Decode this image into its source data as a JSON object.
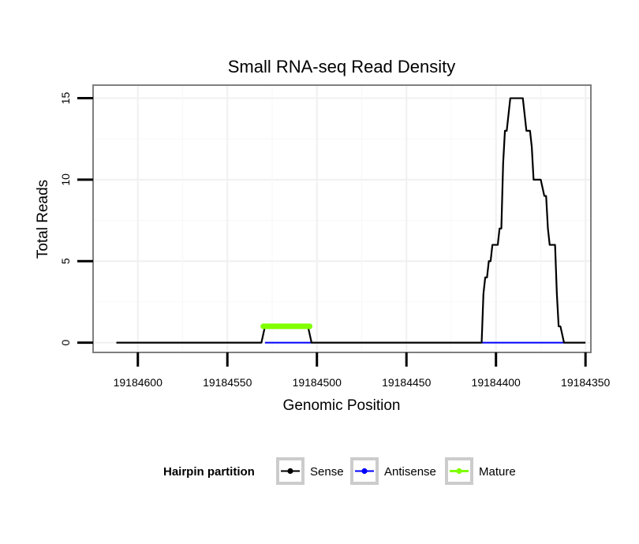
{
  "chart_data": {
    "type": "line",
    "title": "Small RNA-seq Read Density",
    "xlabel": "Genomic Position",
    "ylabel": "Total Reads",
    "xlim": [
      19184625,
      19184347
    ],
    "x_reversed": true,
    "ylim": [
      -0.6,
      15.8
    ],
    "x_ticks": [
      19184600,
      19184550,
      19184500,
      19184450,
      19184400,
      19184350
    ],
    "x_tick_labels": [
      "19184600",
      "19184550",
      "19184500",
      "19184450",
      "19184400",
      "19184350"
    ],
    "y_ticks": [
      0,
      5,
      10,
      15
    ],
    "y_tick_labels": [
      "0",
      "5",
      "10",
      "15"
    ],
    "grid": true,
    "legend": {
      "title": "Hairpin partition",
      "position": "bottom",
      "entries": [
        {
          "name": "Sense",
          "color": "#000000"
        },
        {
          "name": "Antisense",
          "color": "#0000ff"
        },
        {
          "name": "Mature",
          "color": "#7fff00"
        }
      ]
    },
    "series": [
      {
        "name": "Sense",
        "color": "#000000",
        "x": [
          19184612,
          19184531,
          19184529,
          19184505,
          19184503,
          19184408,
          19184407,
          19184406,
          19184405,
          19184404,
          19184403,
          19184402,
          19184401,
          19184399,
          19184398,
          19184397,
          19184396,
          19184395,
          19184394,
          19184393,
          19184392,
          19184390,
          19184389,
          19184387,
          19184385,
          19184384,
          19184383,
          19184381,
          19184380,
          19184379,
          19184378,
          19184376,
          19184375,
          19184373,
          19184372,
          19184371,
          19184370,
          19184369,
          19184368,
          19184367,
          19184366,
          19184365,
          19184364,
          19184362,
          19184361,
          19184360,
          19184350
        ],
        "y": [
          0,
          0,
          1,
          1,
          0,
          0,
          3,
          4,
          4,
          5,
          5,
          6,
          6,
          6,
          7,
          7,
          11,
          13,
          13,
          14,
          15,
          15,
          15,
          15,
          15,
          14,
          13,
          13,
          12,
          10,
          10,
          10,
          10,
          9,
          9,
          7,
          6,
          6,
          6,
          6,
          3,
          1,
          1,
          0,
          0,
          0,
          0
        ]
      },
      {
        "name": "Antisense",
        "color": "#0000ff",
        "segments": [
          [
            19184529,
            19184503
          ],
          [
            19184408,
            19184362
          ]
        ],
        "value": 0
      },
      {
        "name": "Mature",
        "color": "#7fff00",
        "x_start": 19184530,
        "x_end": 19184504,
        "value": 1
      }
    ]
  }
}
